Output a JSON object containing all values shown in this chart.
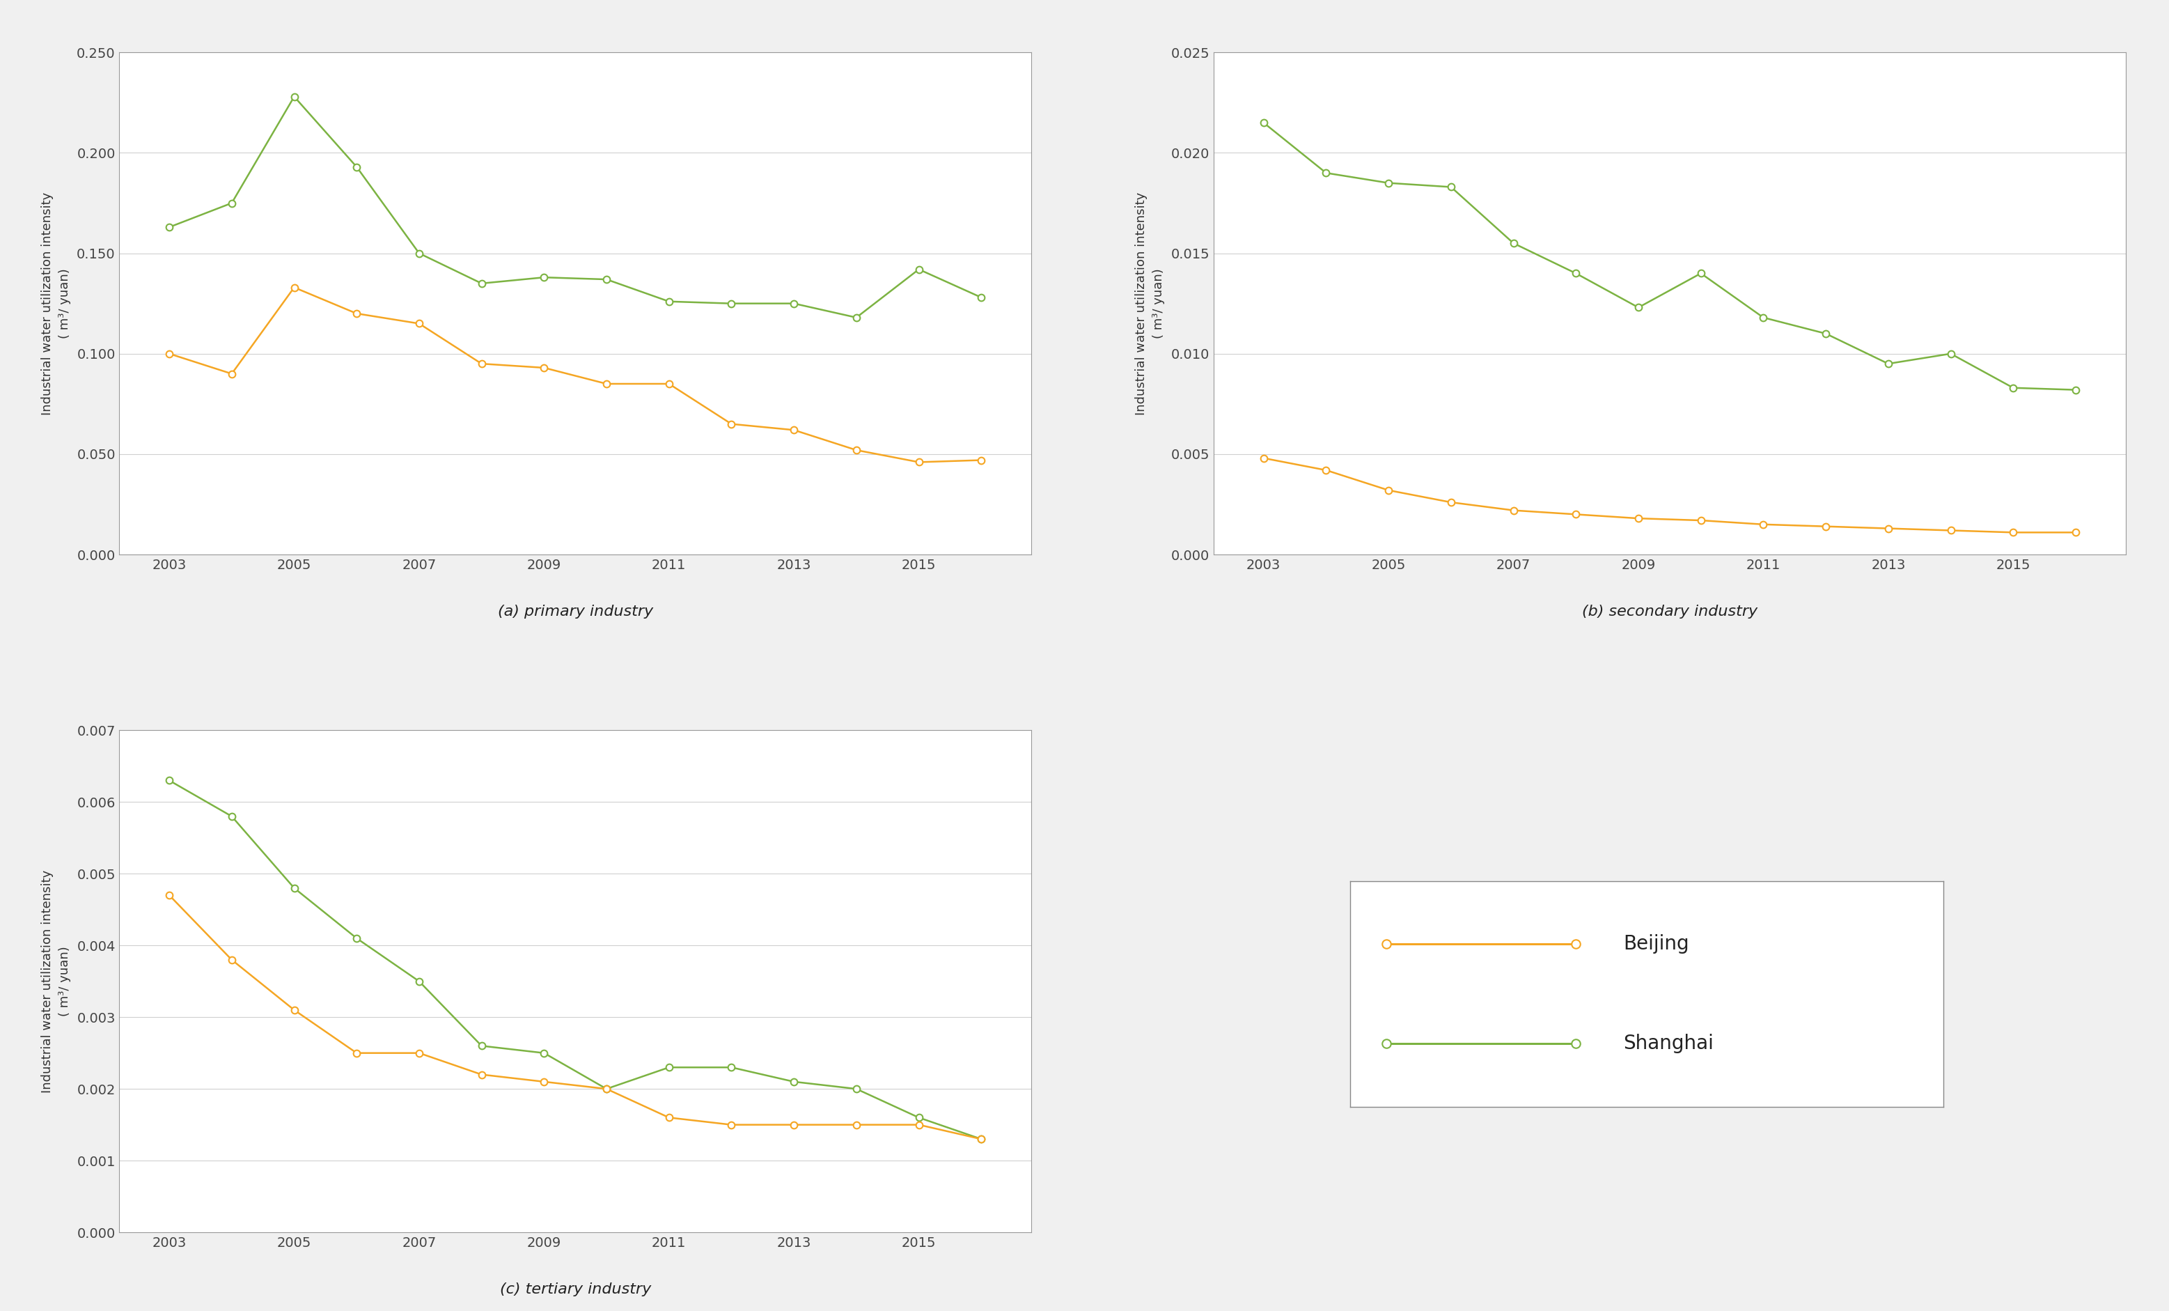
{
  "years": [
    2003,
    2004,
    2005,
    2006,
    2007,
    2008,
    2009,
    2010,
    2011,
    2012,
    2013,
    2014,
    2015,
    2016
  ],
  "primary_beijing": [
    0.1,
    0.09,
    0.133,
    0.12,
    0.115,
    0.095,
    0.093,
    0.085,
    0.085,
    0.065,
    0.062,
    0.052,
    0.046,
    0.047
  ],
  "primary_shanghai": [
    0.163,
    0.175,
    0.228,
    0.193,
    0.15,
    0.135,
    0.138,
    0.137,
    0.126,
    0.125,
    0.125,
    0.118,
    0.142,
    0.128
  ],
  "secondary_beijing": [
    0.0048,
    0.0042,
    0.0032,
    0.0026,
    0.0022,
    0.002,
    0.0018,
    0.0017,
    0.0015,
    0.0014,
    0.0013,
    0.0012,
    0.0011,
    0.0011
  ],
  "secondary_shanghai": [
    0.0215,
    0.019,
    0.0185,
    0.0183,
    0.0155,
    0.014,
    0.0123,
    0.014,
    0.0118,
    0.011,
    0.0095,
    0.01,
    0.0083,
    0.0082
  ],
  "tertiary_beijing": [
    0.0047,
    0.0038,
    0.0031,
    0.0025,
    0.0025,
    0.0022,
    0.0021,
    0.002,
    0.0016,
    0.0015,
    0.0015,
    0.0015,
    0.0015,
    0.0013
  ],
  "tertiary_shanghai": [
    0.0063,
    0.0058,
    0.0048,
    0.0041,
    0.0035,
    0.0026,
    0.0025,
    0.002,
    0.0023,
    0.0023,
    0.0021,
    0.002,
    0.0016,
    0.0013
  ],
  "beijing_color": "#F5A623",
  "shanghai_color": "#7CB342",
  "subtitle_a": "(a) primary industry",
  "subtitle_b": "(b) secondary industry",
  "subtitle_c": "(c) tertiary industry",
  "ylabel": "Industrial water utilization intensity\n( m³/ yuan)",
  "primary_ylim": [
    0.0,
    0.25
  ],
  "secondary_ylim": [
    0.0,
    0.025
  ],
  "tertiary_ylim": [
    0.0,
    0.007
  ],
  "primary_yticks": [
    0.0,
    0.05,
    0.1,
    0.15,
    0.2,
    0.25
  ],
  "secondary_yticks": [
    0.0,
    0.005,
    0.01,
    0.015,
    0.02,
    0.025
  ],
  "tertiary_yticks": [
    0.0,
    0.001,
    0.002,
    0.003,
    0.004,
    0.005,
    0.006,
    0.007
  ],
  "xticks": [
    2003,
    2005,
    2007,
    2009,
    2011,
    2013,
    2015
  ],
  "legend_beijing": "Beijing",
  "legend_shanghai": "Shanghai",
  "background_color": "#f0f0f0",
  "panel_color": "#ffffff",
  "grid_color": "#d0d0d0",
  "spine_color": "#999999",
  "tick_fontsize": 14,
  "ylabel_fontsize": 13,
  "subtitle_fontsize": 16,
  "legend_fontsize": 20,
  "marker_size": 7,
  "line_width": 1.8
}
